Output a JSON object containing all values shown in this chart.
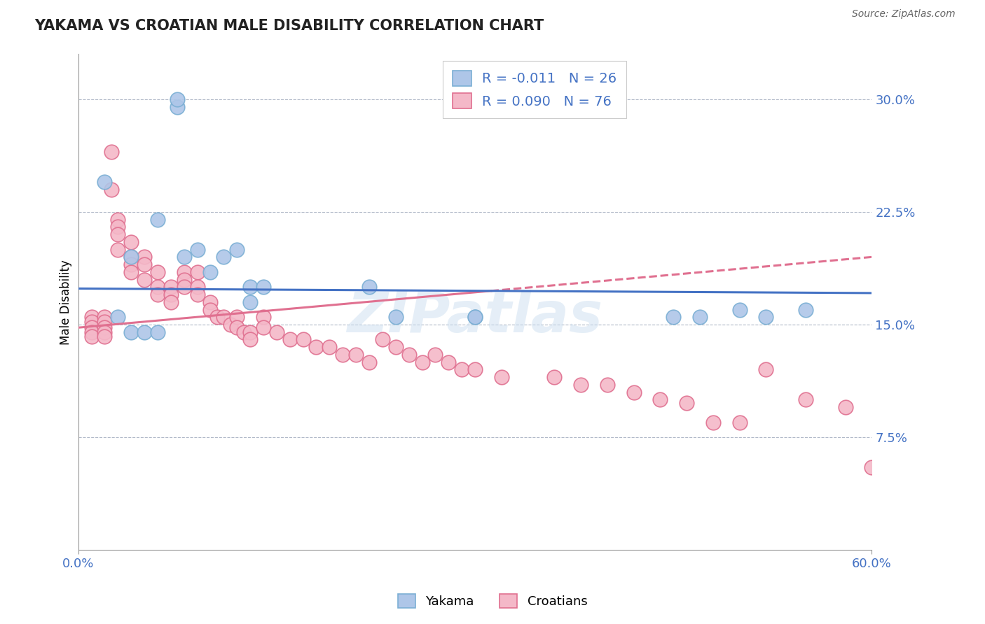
{
  "title": "YAKAMA VS CROATIAN MALE DISABILITY CORRELATION CHART",
  "source": "Source: ZipAtlas.com",
  "ylabel": "Male Disability",
  "yticks": [
    0.0,
    0.075,
    0.15,
    0.225,
    0.3
  ],
  "ytick_labels": [
    "",
    "7.5%",
    "15.0%",
    "22.5%",
    "30.0%"
  ],
  "xlim": [
    0.0,
    0.6
  ],
  "ylim": [
    0.0,
    0.33
  ],
  "yakama_color": "#aec6e8",
  "yakama_edge": "#7bafd4",
  "croatian_color": "#f4b8c8",
  "croatian_edge": "#e07090",
  "trendline_yakama_color": "#4472c4",
  "trendline_croatian_color": "#e07090",
  "legend_yakama_R": "R = -0.011",
  "legend_yakama_N": "N = 26",
  "legend_croatian_R": "R = 0.090",
  "legend_croatian_N": "N = 76",
  "watermark": "ZIPatlas",
  "background_color": "#ffffff",
  "grid_color": "#b0b8c8",
  "trendline_yakama_y0": 0.174,
  "trendline_yakama_y1": 0.171,
  "trendline_croatian_y0": 0.148,
  "trendline_croatian_y1": 0.195,
  "yakama_x": [
    0.02,
    0.075,
    0.075,
    0.04,
    0.06,
    0.08,
    0.09,
    0.1,
    0.11,
    0.12,
    0.13,
    0.13,
    0.14,
    0.22,
    0.24,
    0.3,
    0.3,
    0.45,
    0.47,
    0.5,
    0.52,
    0.55,
    0.03,
    0.04,
    0.05,
    0.06
  ],
  "yakama_y": [
    0.245,
    0.295,
    0.3,
    0.195,
    0.22,
    0.195,
    0.2,
    0.185,
    0.195,
    0.2,
    0.175,
    0.165,
    0.175,
    0.175,
    0.155,
    0.155,
    0.155,
    0.155,
    0.155,
    0.16,
    0.155,
    0.16,
    0.155,
    0.145,
    0.145,
    0.145
  ],
  "croatian_x": [
    0.01,
    0.01,
    0.01,
    0.01,
    0.01,
    0.02,
    0.02,
    0.02,
    0.02,
    0.02,
    0.025,
    0.025,
    0.03,
    0.03,
    0.03,
    0.03,
    0.04,
    0.04,
    0.04,
    0.04,
    0.05,
    0.05,
    0.05,
    0.06,
    0.06,
    0.06,
    0.07,
    0.07,
    0.07,
    0.08,
    0.08,
    0.08,
    0.09,
    0.09,
    0.09,
    0.1,
    0.1,
    0.105,
    0.11,
    0.115,
    0.12,
    0.12,
    0.125,
    0.13,
    0.13,
    0.14,
    0.14,
    0.15,
    0.16,
    0.17,
    0.18,
    0.19,
    0.2,
    0.21,
    0.22,
    0.23,
    0.24,
    0.25,
    0.26,
    0.27,
    0.28,
    0.29,
    0.3,
    0.32,
    0.36,
    0.38,
    0.4,
    0.42,
    0.44,
    0.46,
    0.48,
    0.5,
    0.52,
    0.55,
    0.58,
    0.6
  ],
  "croatian_y": [
    0.155,
    0.152,
    0.148,
    0.145,
    0.142,
    0.155,
    0.152,
    0.148,
    0.145,
    0.142,
    0.265,
    0.24,
    0.22,
    0.215,
    0.21,
    0.2,
    0.205,
    0.195,
    0.19,
    0.185,
    0.195,
    0.19,
    0.18,
    0.185,
    0.175,
    0.17,
    0.175,
    0.17,
    0.165,
    0.185,
    0.18,
    0.175,
    0.185,
    0.175,
    0.17,
    0.165,
    0.16,
    0.155,
    0.155,
    0.15,
    0.155,
    0.148,
    0.145,
    0.145,
    0.14,
    0.155,
    0.148,
    0.145,
    0.14,
    0.14,
    0.135,
    0.135,
    0.13,
    0.13,
    0.125,
    0.14,
    0.135,
    0.13,
    0.125,
    0.13,
    0.125,
    0.12,
    0.12,
    0.115,
    0.115,
    0.11,
    0.11,
    0.105,
    0.1,
    0.098,
    0.085,
    0.085,
    0.12,
    0.1,
    0.095,
    0.055
  ]
}
